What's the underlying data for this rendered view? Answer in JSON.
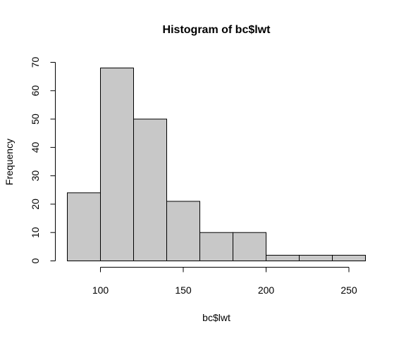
{
  "chart_data": {
    "type": "bar",
    "title": "Histogram of bc$lwt",
    "xlabel": "bc$lwt",
    "ylabel": "Frequency",
    "bins": [
      {
        "from": 80,
        "to": 100,
        "count": 24
      },
      {
        "from": 100,
        "to": 120,
        "count": 68
      },
      {
        "from": 120,
        "to": 140,
        "count": 50
      },
      {
        "from": 140,
        "to": 160,
        "count": 21
      },
      {
        "from": 160,
        "to": 180,
        "count": 10
      },
      {
        "from": 180,
        "to": 200,
        "count": 10
      },
      {
        "from": 200,
        "to": 220,
        "count": 2
      },
      {
        "from": 220,
        "to": 240,
        "count": 2
      },
      {
        "from": 240,
        "to": 260,
        "count": 2
      }
    ],
    "xlim": [
      80,
      260
    ],
    "ylim": [
      0,
      70
    ],
    "x_ticks": [
      100,
      150,
      200,
      250
    ],
    "y_ticks": [
      0,
      10,
      20,
      30,
      40,
      50,
      60,
      70
    ],
    "bar_color": "#c8c8c8",
    "border_color": "#000000",
    "grid": false,
    "legend": "none"
  }
}
